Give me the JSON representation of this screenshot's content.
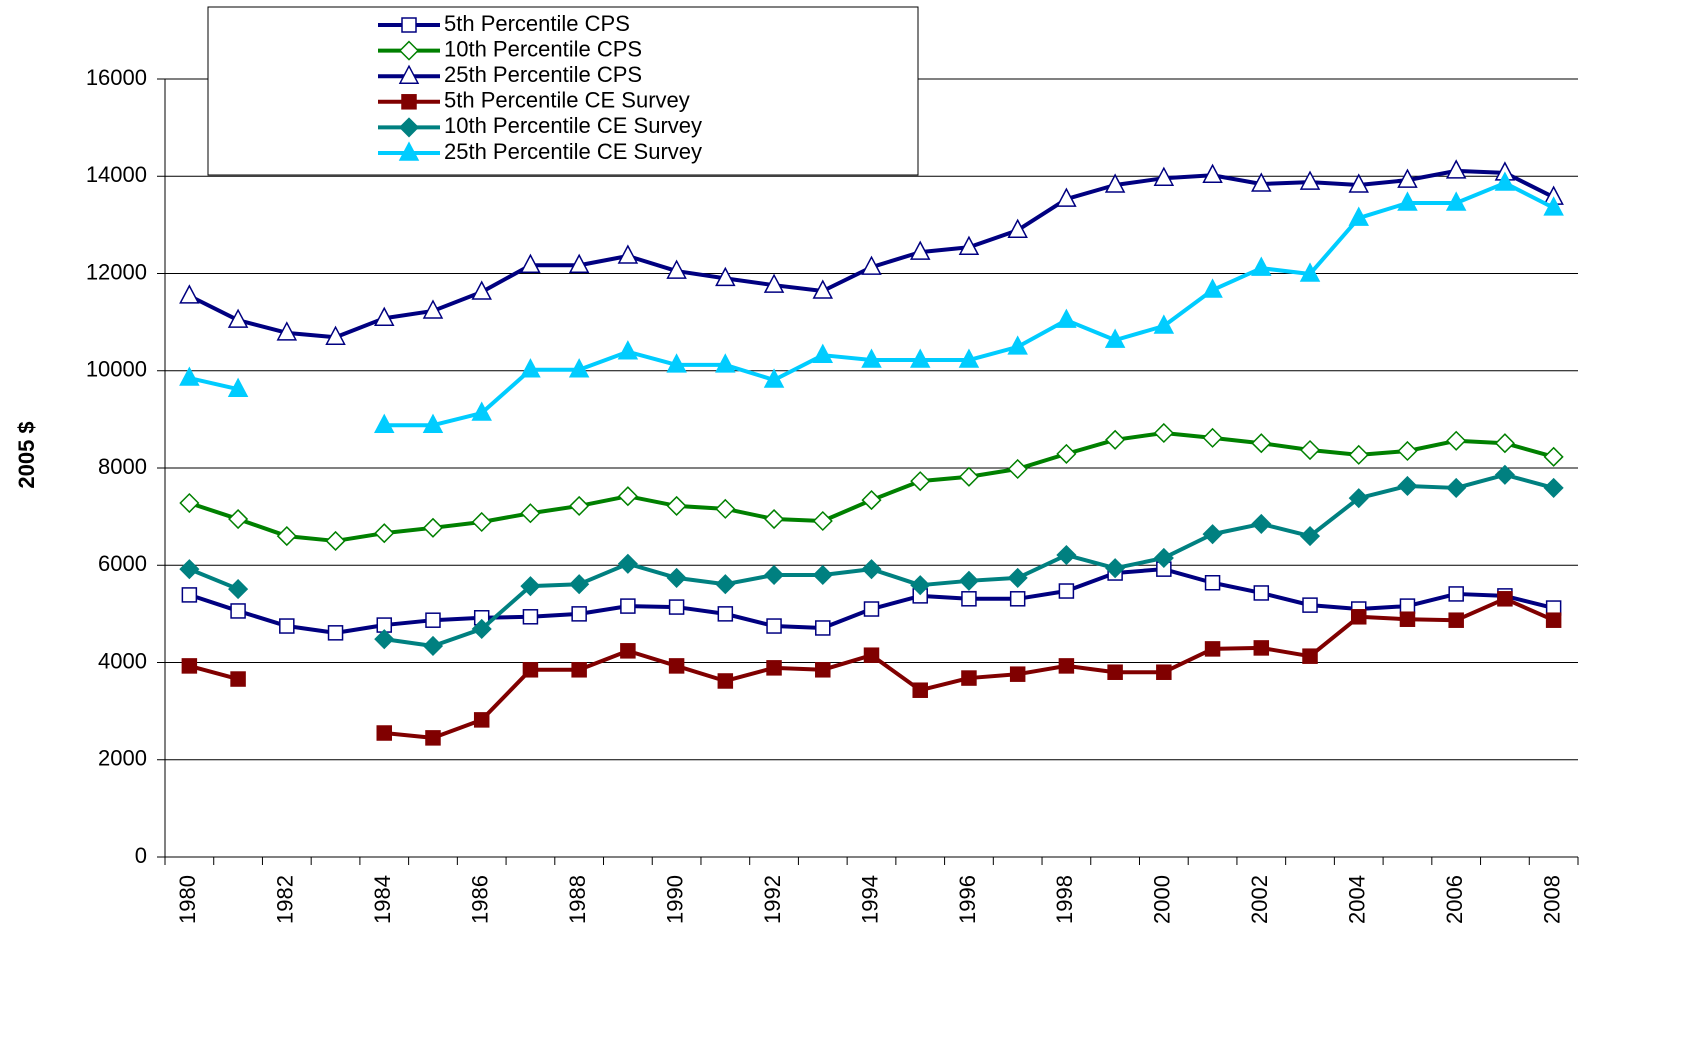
{
  "chart_data": {
    "type": "line",
    "y_label": "2005 $",
    "categories": [
      "1980",
      null,
      "1982",
      null,
      "1984",
      null,
      "1986",
      null,
      "1988",
      null,
      "1990",
      null,
      "1992",
      null,
      "1994",
      null,
      "1996",
      null,
      "1998",
      null,
      "2000",
      null,
      "2002",
      null,
      "2004",
      null,
      "2006",
      null,
      "2008"
    ],
    "ylim": [
      0,
      16000
    ],
    "yticks": [
      0,
      2000,
      4000,
      6000,
      8000,
      10000,
      12000,
      14000,
      16000
    ],
    "grid": true,
    "legend": "top-left",
    "series": [
      {
        "name": "5th Percentile CPS",
        "color": "#000080",
        "marker": "square",
        "filled": false,
        "values": [
          5390,
          5060,
          4750,
          4610,
          4770,
          4870,
          4920,
          4940,
          5000,
          5160,
          5140,
          5000,
          4750,
          4710,
          5100,
          5370,
          5310,
          5310,
          5470,
          5840,
          5920,
          5640,
          5430,
          5180,
          5100,
          5160,
          5410,
          5370,
          5120
        ]
      },
      {
        "name": "10th Percentile CPS",
        "color": "#008000",
        "marker": "diamond",
        "filled": false,
        "values": [
          7280,
          6950,
          6600,
          6500,
          6660,
          6770,
          6890,
          7070,
          7220,
          7420,
          7220,
          7160,
          6950,
          6910,
          7340,
          7730,
          7820,
          7980,
          8290,
          8580,
          8720,
          8620,
          8510,
          8370,
          8270,
          8350,
          8560,
          8510,
          8230
        ]
      },
      {
        "name": "25th Percentile CPS",
        "color": "#000080",
        "marker": "triangle",
        "filled": false,
        "values": [
          11540,
          11040,
          10780,
          10690,
          11080,
          11230,
          11620,
          12170,
          12170,
          12360,
          12050,
          11900,
          11760,
          11640,
          12130,
          12440,
          12540,
          12890,
          13530,
          13820,
          13960,
          14020,
          13840,
          13880,
          13820,
          13920,
          14110,
          14070,
          13570
        ]
      },
      {
        "name": "5th Percentile CE Survey",
        "color": "#800000",
        "marker": "square",
        "filled": true,
        "values": [
          3930,
          3660,
          null,
          null,
          2550,
          2450,
          2820,
          3850,
          3850,
          4240,
          3930,
          3620,
          3890,
          3850,
          4150,
          3430,
          3680,
          3760,
          3930,
          3800,
          3800,
          4280,
          4300,
          4130,
          4940,
          4890,
          4870,
          5310,
          4870
        ]
      },
      {
        "name": "10th Percentile CE Survey",
        "color": "#008080",
        "marker": "diamond",
        "filled": true,
        "values": [
          5920,
          5510,
          null,
          null,
          4480,
          4340,
          4690,
          5570,
          5610,
          6030,
          5740,
          5610,
          5800,
          5800,
          5920,
          5590,
          5680,
          5740,
          6210,
          5940,
          6150,
          6640,
          6850,
          6600,
          7380,
          7630,
          7590,
          7860,
          7590
        ]
      },
      {
        "name": "25th Percentile CE Survey",
        "color": "#00ccff",
        "marker": "triangle",
        "filled": true,
        "values": [
          9850,
          9620,
          null,
          null,
          8880,
          8880,
          9130,
          10020,
          10020,
          10390,
          10120,
          10120,
          9810,
          10320,
          10220,
          10220,
          10220,
          10490,
          11040,
          10630,
          10920,
          11660,
          12110,
          11990,
          13140,
          13450,
          13450,
          13860,
          13350
        ]
      }
    ]
  }
}
